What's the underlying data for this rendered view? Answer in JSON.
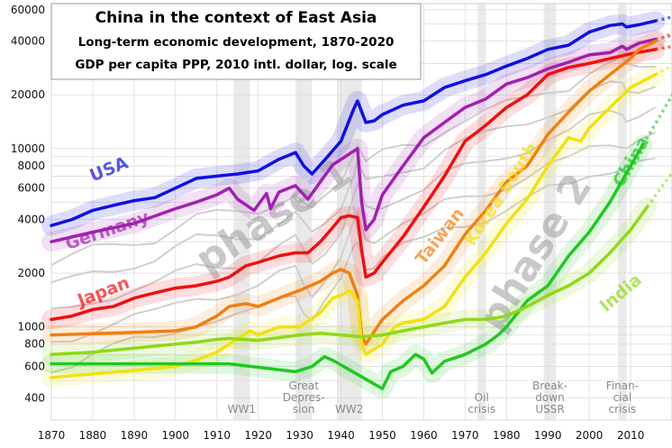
{
  "header": {
    "title": "China in the context of East Asia",
    "subtitle_1": "Long-term economic development, 1870-2020",
    "subtitle_2": "GDP per capita PPP, 2010 intl. dollar, log. scale"
  },
  "phase_labels": [
    "phase 1",
    "phase 2"
  ],
  "periods": [
    {
      "label_lines": [
        "WW1"
      ],
      "start": 1914,
      "end": 1918
    },
    {
      "label_lines": [
        "Great",
        "Depres-",
        "sion"
      ],
      "start": 1929,
      "end": 1933
    },
    {
      "label_lines": [
        "WW2"
      ],
      "start": 1939,
      "end": 1945
    },
    {
      "label_lines": [
        "Oil",
        "crisis"
      ],
      "start": 1973,
      "end": 1975
    },
    {
      "label_lines": [
        "Break-",
        "down",
        "USSR"
      ],
      "start": 1989,
      "end": 1992
    },
    {
      "label_lines": [
        "Finan-",
        "cial",
        "crisis"
      ],
      "start": 2007,
      "end": 2009
    }
  ],
  "colors": {
    "USA": "#1010e0",
    "Germany": "#a020b0",
    "Japan": "#ee1010",
    "Taiwan": "#f08010",
    "Korea South": "#f4e010",
    "China": "#20c820",
    "India": "#90d818",
    "background_series": "#cfcfcf",
    "period_band": "#dcdcdc",
    "grid": "#dddddd"
  },
  "chart_data": {
    "type": "line",
    "title": "China in the context of East Asia",
    "xlabel": "",
    "ylabel": "",
    "xlim": [
      1870,
      2020
    ],
    "ylim": [
      300,
      65000
    ],
    "y_scale": "log",
    "x_ticks": [
      1870,
      1880,
      1890,
      1900,
      1910,
      1920,
      1930,
      1940,
      1950,
      1960,
      1970,
      1980,
      1990,
      2000,
      2010
    ],
    "y_ticks": [
      400,
      600,
      800,
      1000,
      2000,
      4000,
      6000,
      8000,
      10000,
      20000,
      40000,
      60000
    ],
    "y_tick_labels": [
      "400",
      "600",
      "800",
      "1000",
      "2000",
      "4000",
      "6000",
      "8000",
      "10000",
      "20000",
      "40000",
      "60000"
    ],
    "grid": true,
    "legend": "labels next to lines",
    "series": [
      {
        "name": "USA",
        "x": [
          1870,
          1875,
          1880,
          1885,
          1890,
          1895,
          1900,
          1905,
          1910,
          1915,
          1920,
          1925,
          1929,
          1931,
          1933,
          1936,
          1940,
          1943,
          1944,
          1946,
          1948,
          1950,
          1955,
          1960,
          1965,
          1970,
          1975,
          1980,
          1985,
          1990,
          1995,
          2000,
          2005,
          2008,
          2009,
          2012,
          2016
        ],
        "y": [
          3700,
          4000,
          4500,
          4800,
          5100,
          5300,
          6000,
          6800,
          7000,
          7200,
          7500,
          8700,
          9500,
          8000,
          7200,
          8600,
          11000,
          16500,
          18500,
          14000,
          14300,
          15500,
          17500,
          18500,
          22000,
          24000,
          26000,
          29000,
          32000,
          36000,
          38000,
          45000,
          49000,
          50000,
          48000,
          49500,
          52000
        ]
      },
      {
        "name": "Germany",
        "x": [
          1870,
          1880,
          1890,
          1900,
          1905,
          1910,
          1913,
          1915,
          1919,
          1922,
          1923,
          1925,
          1929,
          1932,
          1935,
          1938,
          1944,
          1945,
          1946,
          1948,
          1950,
          1955,
          1960,
          1965,
          1970,
          1975,
          1980,
          1985,
          1990,
          1995,
          2000,
          2005,
          2008,
          2009,
          2012,
          2016
        ],
        "y": [
          3000,
          3400,
          3800,
          4600,
          5000,
          5500,
          6000,
          5200,
          4500,
          5600,
          4600,
          5700,
          6200,
          5200,
          6500,
          8100,
          10000,
          5000,
          3500,
          4000,
          5500,
          8000,
          11500,
          14000,
          17000,
          19000,
          23000,
          25000,
          28000,
          30500,
          33500,
          34500,
          37500,
          36000,
          39000,
          41000
        ]
      },
      {
        "name": "Japan",
        "x": [
          1870,
          1875,
          1880,
          1885,
          1890,
          1895,
          1900,
          1905,
          1910,
          1913,
          1917,
          1920,
          1925,
          1929,
          1932,
          1935,
          1938,
          1940,
          1942,
          1944,
          1945,
          1946,
          1948,
          1950,
          1955,
          1960,
          1965,
          1970,
          1975,
          1980,
          1985,
          1990,
          1995,
          2000,
          2005,
          2010,
          2016
        ],
        "y": [
          1100,
          1150,
          1250,
          1300,
          1450,
          1550,
          1650,
          1700,
          1800,
          1900,
          2200,
          2300,
          2500,
          2600,
          2600,
          3000,
          3600,
          4100,
          4200,
          4100,
          2700,
          1900,
          2000,
          2300,
          3200,
          4700,
          7000,
          11000,
          13500,
          17000,
          20000,
          26000,
          28500,
          30000,
          32000,
          34000,
          36000
        ]
      },
      {
        "name": "Taiwan",
        "x": [
          1870,
          1890,
          1900,
          1905,
          1910,
          1913,
          1917,
          1920,
          1925,
          1930,
          1935,
          1938,
          1940,
          1942,
          1944,
          1945,
          1946,
          1950,
          1955,
          1960,
          1965,
          1970,
          1975,
          1980,
          1985,
          1990,
          1995,
          2000,
          2005,
          2010,
          2012,
          2016
        ],
        "y": [
          900,
          930,
          950,
          1000,
          1150,
          1300,
          1350,
          1300,
          1450,
          1600,
          1800,
          2000,
          2100,
          2000,
          1500,
          900,
          800,
          1100,
          1400,
          1700,
          2200,
          3300,
          4500,
          6500,
          8000,
          12000,
          16000,
          21000,
          26000,
          32000,
          36000,
          40000
        ]
      },
      {
        "name": "Korea South",
        "x": [
          1870,
          1890,
          1900,
          1905,
          1910,
          1913,
          1918,
          1920,
          1925,
          1930,
          1935,
          1938,
          1940,
          1942,
          1944,
          1945,
          1946,
          1950,
          1953,
          1955,
          1960,
          1965,
          1970,
          1975,
          1980,
          1985,
          1990,
          1995,
          1998,
          2000,
          2005,
          2010,
          2016
        ],
        "y": [
          520,
          570,
          600,
          650,
          720,
          800,
          950,
          900,
          1000,
          1000,
          1200,
          1450,
          1500,
          1600,
          1400,
          800,
          700,
          800,
          1000,
          1050,
          1100,
          1300,
          1900,
          2600,
          3800,
          5200,
          8000,
          11500,
          11000,
          13000,
          17000,
          22000,
          26000
        ]
      },
      {
        "name": "China",
        "x": [
          1870,
          1880,
          1890,
          1900,
          1910,
          1913,
          1929,
          1933,
          1936,
          1938,
          1950,
          1952,
          1955,
          1958,
          1960,
          1962,
          1965,
          1970,
          1975,
          1978,
          1980,
          1985,
          1990,
          1995,
          2000,
          2005,
          2010,
          2013
        ],
        "y": [
          620,
          620,
          620,
          620,
          620,
          620,
          560,
          600,
          680,
          650,
          450,
          560,
          600,
          700,
          660,
          550,
          640,
          700,
          800,
          900,
          1000,
          1400,
          1700,
          2500,
          3400,
          5000,
          8000,
          10500
        ]
      },
      {
        "name": "India",
        "x": [
          1870,
          1880,
          1890,
          1900,
          1905,
          1910,
          1913,
          1920,
          1930,
          1935,
          1940,
          1945,
          1950,
          1955,
          1960,
          1965,
          1970,
          1975,
          1980,
          1985,
          1990,
          1995,
          2000,
          2005,
          2010,
          2014
        ],
        "y": [
          700,
          720,
          760,
          800,
          820,
          850,
          860,
          840,
          900,
          920,
          900,
          880,
          900,
          950,
          1000,
          1050,
          1100,
          1100,
          1150,
          1300,
          1500,
          1700,
          2000,
          2600,
          3500,
          4700
        ]
      }
    ]
  }
}
